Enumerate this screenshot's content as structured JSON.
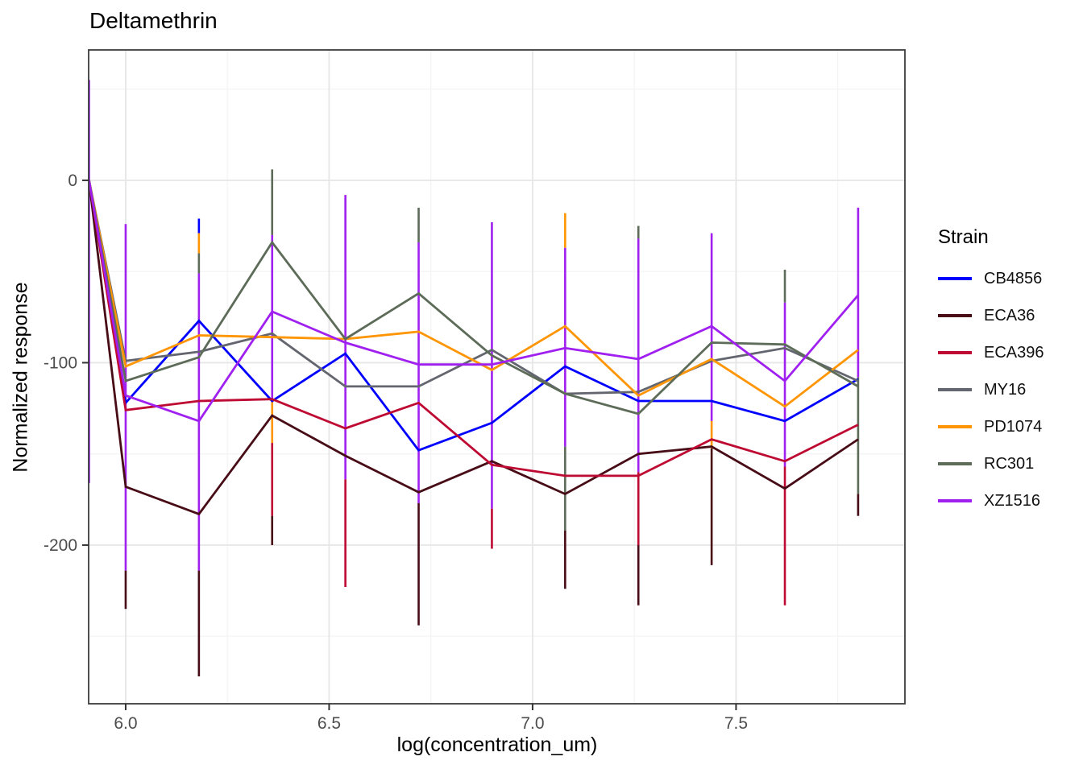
{
  "chart_data": {
    "type": "line",
    "title": "Deltamethrin",
    "xlabel": "log(concentration_um)",
    "ylabel": "Normalized response",
    "legend_title": "Strain",
    "legend_position": "right",
    "grid": "on",
    "x": [
      5.91,
      6.0,
      6.18,
      6.36,
      6.54,
      6.72,
      6.9,
      7.08,
      7.26,
      7.44,
      7.62,
      7.8
    ],
    "series": [
      {
        "name": "CB4856",
        "color": "#0000FF",
        "values": [
          0,
          -122,
          -77,
          -121,
          -95,
          -148,
          -133,
          -102,
          -121,
          -121,
          -132,
          -109
        ]
      },
      {
        "name": "ECA36",
        "color": "#470C16",
        "values": [
          0,
          -168,
          -183,
          -129,
          -151,
          -171,
          -154,
          -172,
          -150,
          -146,
          -169,
          -142
        ]
      },
      {
        "name": "ECA396",
        "color": "#BE0A33",
        "values": [
          0,
          -126,
          -121,
          -120,
          -136,
          -122,
          -156,
          -162,
          -162,
          -142,
          -154,
          -134
        ]
      },
      {
        "name": "MY16",
        "color": "#63666F",
        "values": [
          0,
          -99,
          -94,
          -84,
          -113,
          -113,
          -93,
          -117,
          -116,
          -99,
          -92,
          -110
        ]
      },
      {
        "name": "PD1074",
        "color": "#FF9503",
        "values": [
          0,
          -102,
          -85,
          -86,
          -87,
          -83,
          -104,
          -80,
          -118,
          -98,
          -124,
          -93
        ]
      },
      {
        "name": "RC301",
        "color": "#5D6B59",
        "values": [
          0,
          -110,
          -97,
          -34,
          -87,
          -62,
          -96,
          -117,
          -128,
          -89,
          -90,
          -113
        ]
      },
      {
        "name": "XZ1516",
        "color": "#A020F0",
        "values": [
          0,
          -118,
          -132,
          -72,
          -89,
          -101,
          -101,
          -92,
          -98,
          -80,
          -110,
          -63
        ]
      }
    ],
    "error_bars": [
      {
        "x": 5.91,
        "strain": "XZ1516",
        "top": 55,
        "bottom": -166
      },
      {
        "x": 6.0,
        "strain": "XZ1516",
        "top": -24,
        "bottom": -214
      },
      {
        "x": 6.0,
        "strain": "ECA36",
        "top": -214,
        "bottom": -235
      },
      {
        "x": 6.18,
        "strain": "CB4856",
        "top": -21,
        "bottom": -29
      },
      {
        "x": 6.18,
        "strain": "PD1074",
        "top": -29,
        "bottom": -40
      },
      {
        "x": 6.18,
        "strain": "RC301",
        "top": -40,
        "bottom": -51
      },
      {
        "x": 6.18,
        "strain": "XZ1516",
        "top": -51,
        "bottom": -214
      },
      {
        "x": 6.18,
        "strain": "ECA36",
        "top": -214,
        "bottom": -272
      },
      {
        "x": 6.36,
        "strain": "RC301",
        "top": 6,
        "bottom": -30
      },
      {
        "x": 6.36,
        "strain": "XZ1516",
        "top": -30,
        "bottom": -120
      },
      {
        "x": 6.36,
        "strain": "PD1074",
        "top": -120,
        "bottom": -144
      },
      {
        "x": 6.36,
        "strain": "ECA396",
        "top": -144,
        "bottom": -184
      },
      {
        "x": 6.36,
        "strain": "ECA36",
        "top": -184,
        "bottom": -200
      },
      {
        "x": 6.54,
        "strain": "XZ1516",
        "top": -8,
        "bottom": -164
      },
      {
        "x": 6.54,
        "strain": "ECA396",
        "top": -164,
        "bottom": -223
      },
      {
        "x": 6.72,
        "strain": "RC301",
        "top": -15,
        "bottom": -34
      },
      {
        "x": 6.72,
        "strain": "XZ1516",
        "top": -34,
        "bottom": -177
      },
      {
        "x": 6.72,
        "strain": "ECA36",
        "top": -177,
        "bottom": -244
      },
      {
        "x": 6.9,
        "strain": "XZ1516",
        "top": -23,
        "bottom": -180
      },
      {
        "x": 6.9,
        "strain": "ECA396",
        "top": -180,
        "bottom": -202
      },
      {
        "x": 7.08,
        "strain": "PD1074",
        "top": -18,
        "bottom": -37
      },
      {
        "x": 7.08,
        "strain": "XZ1516",
        "top": -37,
        "bottom": -146
      },
      {
        "x": 7.08,
        "strain": "RC301",
        "top": -146,
        "bottom": -192
      },
      {
        "x": 7.08,
        "strain": "ECA36",
        "top": -192,
        "bottom": -224
      },
      {
        "x": 7.26,
        "strain": "RC301",
        "top": -25,
        "bottom": -32
      },
      {
        "x": 7.26,
        "strain": "XZ1516",
        "top": -32,
        "bottom": -160
      },
      {
        "x": 7.26,
        "strain": "ECA396",
        "top": -160,
        "bottom": -200
      },
      {
        "x": 7.26,
        "strain": "ECA36",
        "top": -200,
        "bottom": -233
      },
      {
        "x": 7.44,
        "strain": "XZ1516",
        "top": -29,
        "bottom": -132
      },
      {
        "x": 7.44,
        "strain": "PD1074",
        "top": -132,
        "bottom": -147
      },
      {
        "x": 7.44,
        "strain": "ECA36",
        "top": -147,
        "bottom": -211
      },
      {
        "x": 7.62,
        "strain": "RC301",
        "top": -49,
        "bottom": -67
      },
      {
        "x": 7.62,
        "strain": "XZ1516",
        "top": -67,
        "bottom": -157
      },
      {
        "x": 7.62,
        "strain": "ECA396",
        "top": -157,
        "bottom": -233
      },
      {
        "x": 7.8,
        "strain": "XZ1516",
        "top": -15,
        "bottom": -108
      },
      {
        "x": 7.8,
        "strain": "RC301",
        "top": -108,
        "bottom": -172
      },
      {
        "x": 7.8,
        "strain": "ECA36",
        "top": -172,
        "bottom": -184
      }
    ],
    "xlim": [
      5.909,
      7.915
    ],
    "ylim": [
      -287,
      71.5
    ],
    "x_ticks": [
      {
        "v": 6.0,
        "label": "6.0"
      },
      {
        "v": 6.5,
        "label": "6.5"
      },
      {
        "v": 7.0,
        "label": "7.0"
      },
      {
        "v": 7.5,
        "label": "7.5"
      }
    ],
    "y_ticks": [
      {
        "v": 0,
        "label": "0"
      },
      {
        "v": -100,
        "label": "-100"
      },
      {
        "v": -200,
        "label": "-200"
      }
    ],
    "x_minor": [
      6.25,
      6.75,
      7.25,
      7.75
    ],
    "y_minor": [
      50,
      -50,
      -150,
      -250
    ],
    "colors": {
      "major_grid": "#E7E7E7",
      "minor_grid": "#F4F4F4",
      "panel_border": "#3C3C3C",
      "tick_mark": "#333333",
      "tick_label": "#4D4D4D",
      "text": "#000000"
    }
  },
  "legend": {
    "title": "Strain",
    "entries": [
      "CB4856",
      "ECA36",
      "ECA396",
      "MY16",
      "PD1074",
      "RC301",
      "XZ1516"
    ]
  }
}
